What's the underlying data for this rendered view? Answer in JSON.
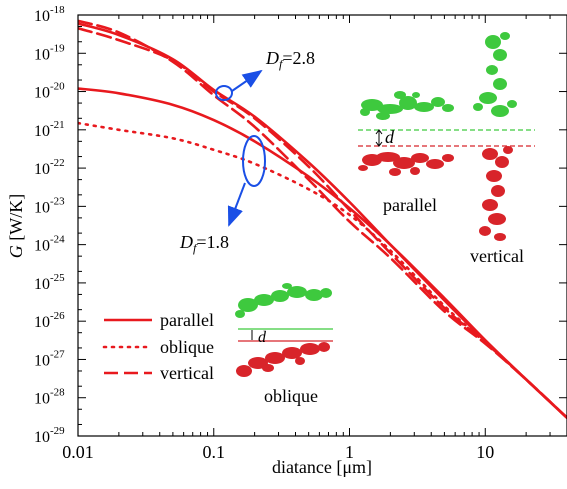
{
  "chart_data": {
    "type": "line",
    "xlabel": "diatance [μm]",
    "ylabel_symbol": "G",
    "ylabel_unit": " [W/K]",
    "x_scale": "log",
    "y_scale": "log",
    "xlim": [
      0.01,
      40
    ],
    "ylim": [
      1e-29,
      1e-18
    ],
    "x_ticks": [
      {
        "value": 0.01,
        "label": "0.01"
      },
      {
        "value": 0.1,
        "label": "0.1"
      },
      {
        "value": 1,
        "label": "1"
      },
      {
        "value": 10,
        "label": "10"
      }
    ],
    "y_ticks": [
      {
        "exp": -18,
        "label_base": "10",
        "label_exp": "-18"
      },
      {
        "exp": -19,
        "label_base": "10",
        "label_exp": "-19"
      },
      {
        "exp": -20,
        "label_base": "10",
        "label_exp": "-20"
      },
      {
        "exp": -21,
        "label_base": "10",
        "label_exp": "-21"
      },
      {
        "exp": -22,
        "label_base": "10",
        "label_exp": "-22"
      },
      {
        "exp": -23,
        "label_base": "10",
        "label_exp": "-23"
      },
      {
        "exp": -24,
        "label_base": "10",
        "label_exp": "-24"
      },
      {
        "exp": -25,
        "label_base": "10",
        "label_exp": "-25"
      },
      {
        "exp": -26,
        "label_base": "10",
        "label_exp": "-26"
      },
      {
        "exp": -27,
        "label_base": "10",
        "label_exp": "-27"
      },
      {
        "exp": -28,
        "label_base": "10",
        "label_exp": "-28"
      },
      {
        "exp": -29,
        "label_base": "10",
        "label_exp": "-29"
      }
    ],
    "grid": false,
    "legend_position": "bottom-left",
    "series_color": "#e8191e",
    "highlight_color": "#1a4fe6",
    "series": [
      {
        "name": "parallel",
        "group": "Df=2.8",
        "dash": "solid",
        "x": [
          0.01,
          0.02,
          0.05,
          0.1,
          0.2,
          0.5,
          1,
          2,
          5,
          10,
          20,
          40
        ],
        "y": [
          6e-19,
          3e-19,
          7e-20,
          1.1e-20,
          2.2e-21,
          1.4e-22,
          1.3e-23,
          1e-24,
          3.5e-26,
          3e-27,
          3e-28,
          3e-29
        ]
      },
      {
        "name": "vertical",
        "group": "Df=2.8",
        "dash": "long",
        "x": [
          0.01,
          0.02,
          0.05,
          0.1,
          0.2,
          0.5,
          1,
          2,
          5,
          10,
          20,
          40
        ],
        "y": [
          4.5e-19,
          2.2e-19,
          6.5e-20,
          1e-20,
          2e-21,
          1.1e-22,
          8e-24,
          6e-25,
          2.2e-26,
          2.8e-27,
          3e-28,
          3e-29
        ]
      },
      {
        "name": "parallel",
        "group": "Df=1.8",
        "dash": "solid",
        "x": [
          0.01,
          0.02,
          0.05,
          0.1,
          0.2,
          0.5,
          1,
          2,
          5,
          10,
          20,
          40
        ],
        "y": [
          1.2e-20,
          9e-21,
          4.5e-21,
          1.8e-21,
          5e-22,
          6e-23,
          9e-24,
          1e-24,
          4e-26,
          3.2e-27,
          3e-28,
          3e-29
        ]
      },
      {
        "name": "oblique",
        "group": "Df=1.8",
        "dash": "dot",
        "x": [
          0.01,
          0.02,
          0.05,
          0.1,
          0.2,
          0.5,
          1,
          2,
          5,
          10,
          20,
          40
        ],
        "y": [
          1.5e-21,
          1e-21,
          6e-22,
          3e-22,
          1.3e-22,
          2.8e-23,
          6e-24,
          7e-25,
          2.5e-26,
          2.8e-27,
          3e-28,
          3e-29
        ]
      },
      {
        "name": "vertical",
        "group": "Df=1.8",
        "dash": "long",
        "x": [
          0.01,
          0.02,
          0.05,
          0.1,
          0.2,
          0.5,
          1,
          2,
          5,
          10,
          20,
          40
        ],
        "y": [
          7e-19,
          3.5e-19,
          6e-20,
          8e-21,
          1.2e-21,
          5e-23,
          4e-24,
          4.5e-25,
          1.8e-26,
          2.6e-27,
          3e-28,
          3e-29
        ]
      }
    ],
    "legend": [
      {
        "label": "parallel",
        "dash": "solid"
      },
      {
        "label": "oblique",
        "dash": "dot"
      },
      {
        "label": "vertical",
        "dash": "long"
      }
    ],
    "annotations": {
      "df_high": {
        "symbol": "D",
        "subscript": "f",
        "value": "=2.8",
        "circle_x": 0.11,
        "circle_y": 1e-20
      },
      "df_low": {
        "symbol": "D",
        "subscript": "f",
        "value": "=1.8",
        "circle_x": 0.2,
        "circle_y": 2.5e-22
      }
    },
    "insets": {
      "separation_label": "d",
      "parallel_label": "parallel",
      "vertical_label": "vertical",
      "oblique_label": "oblique"
    }
  }
}
